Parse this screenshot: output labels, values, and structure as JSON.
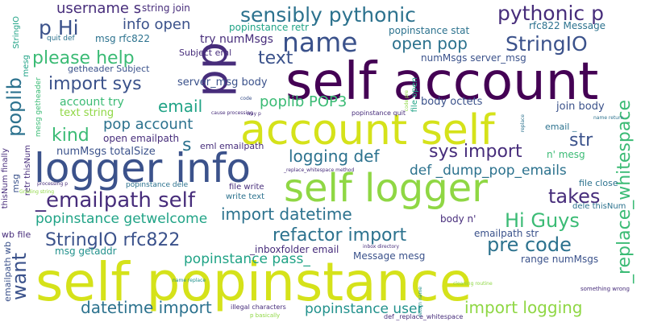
{
  "palette": {
    "background": "#ffffff",
    "yellow": "#d5e21a",
    "light_green": "#8fd744",
    "green": "#3bbb75",
    "teal": "#20a386",
    "cyan": "#21918c",
    "blue": "#2c728e",
    "navy": "#3b528b",
    "indigo": "#472d7b",
    "purple": "#440154"
  },
  "words": [
    {
      "text": "self popinstance",
      "color": "yellow"
    },
    {
      "text": "self account",
      "color": "purple"
    },
    {
      "text": "account self",
      "color": "yellow"
    },
    {
      "text": "logger info",
      "color": "navy"
    },
    {
      "text": "self logger",
      "color": "light_green"
    },
    {
      "text": "pp",
      "color": "indigo"
    },
    {
      "text": "name",
      "color": "navy"
    },
    {
      "text": "sensibly pythonic",
      "color": "blue"
    },
    {
      "text": "pythonic p",
      "color": "indigo"
    },
    {
      "text": "StringIO",
      "color": "navy"
    },
    {
      "text": "username s",
      "color": "indigo"
    },
    {
      "text": "p Hi",
      "color": "navy"
    },
    {
      "text": "info open",
      "color": "navy"
    },
    {
      "text": "string join",
      "color": "indigo"
    },
    {
      "text": "popinstance retr",
      "color": "teal"
    },
    {
      "text": "popinstance stat",
      "color": "blue"
    },
    {
      "text": "rfc822 Message",
      "color": "blue"
    },
    {
      "text": "try numMsgs",
      "color": "indigo"
    },
    {
      "text": "open pop",
      "color": "blue"
    },
    {
      "text": "please help",
      "color": "green"
    },
    {
      "text": "text",
      "color": "navy"
    },
    {
      "text": "import sys",
      "color": "navy"
    },
    {
      "text": "poplib",
      "color": "blue"
    },
    {
      "text": "email",
      "color": "teal"
    },
    {
      "text": "poplib POP3",
      "color": "green"
    },
    {
      "text": "pop account",
      "color": "blue"
    },
    {
      "text": "kind",
      "color": "green"
    },
    {
      "text": "s",
      "color": "blue"
    },
    {
      "text": "str",
      "color": "navy"
    },
    {
      "text": "sys import",
      "color": "indigo"
    },
    {
      "text": "logging def",
      "color": "blue"
    },
    {
      "text": "def _dump_pop_emails",
      "color": "blue"
    },
    {
      "text": "_emailpath self",
      "color": "indigo"
    },
    {
      "text": "takes",
      "color": "indigo"
    },
    {
      "text": "import datetime",
      "color": "blue"
    },
    {
      "text": "Hi Guys",
      "color": "green"
    },
    {
      "text": "popinstance getwelcome",
      "color": "teal"
    },
    {
      "text": "refactor import",
      "color": "blue"
    },
    {
      "text": "StringIO rfc822",
      "color": "navy"
    },
    {
      "text": "pre code",
      "color": "blue"
    },
    {
      "text": "want",
      "color": "navy"
    },
    {
      "text": "popinstance pass_",
      "color": "teal"
    },
    {
      "text": "_replace_whitespace",
      "color": "green"
    },
    {
      "text": "datetime import",
      "color": "blue"
    },
    {
      "text": "popinstance user",
      "color": "cyan"
    },
    {
      "text": "import logging",
      "color": "light_green"
    },
    {
      "text": "numMsgs server_msg",
      "color": "navy"
    },
    {
      "text": "server_msg body",
      "color": "navy"
    },
    {
      "text": "body octets",
      "color": "navy"
    },
    {
      "text": "join body",
      "color": "navy"
    },
    {
      "text": "getheader Subject",
      "color": "navy"
    },
    {
      "text": "account try",
      "color": "green"
    },
    {
      "text": "text string",
      "color": "light_green"
    },
    {
      "text": "numMsgs totalSize",
      "color": "navy"
    },
    {
      "text": "open emailpath",
      "color": "indigo"
    },
    {
      "text": "eml emailpath",
      "color": "indigo"
    },
    {
      "text": "Subject eml",
      "color": "indigo"
    },
    {
      "text": "msg rfc822",
      "color": "blue"
    },
    {
      "text": "quit def",
      "color": "blue"
    },
    {
      "text": "email _",
      "color": "blue"
    },
    {
      "text": "n' mesg",
      "color": "green"
    },
    {
      "text": "file close",
      "color": "blue"
    },
    {
      "text": "dele thisNum",
      "color": "blue"
    },
    {
      "text": "body n'",
      "color": "indigo"
    },
    {
      "text": "emailpath str",
      "color": "navy"
    },
    {
      "text": "range numMsgs",
      "color": "navy"
    },
    {
      "text": "Message mesg",
      "color": "navy"
    },
    {
      "text": "_inboxfolder email",
      "color": "indigo"
    },
    {
      "text": "msg getaddr",
      "color": "cyan"
    },
    {
      "text": "write text",
      "color": "blue"
    },
    {
      "text": "file write",
      "color": "indigo"
    },
    {
      "text": "popinstance dele",
      "color": "blue"
    },
    {
      "text": "retr thisNum",
      "color": "indigo"
    },
    {
      "text": "msg",
      "color": "navy"
    },
    {
      "text": "thisNum finally",
      "color": "indigo"
    },
    {
      "text": "emailpath wb",
      "color": "navy"
    },
    {
      "text": "wb file",
      "color": "indigo"
    },
    {
      "text": "illegal characters",
      "color": "indigo"
    },
    {
      "text": "def _replace_whitespace",
      "color": "indigo"
    },
    {
      "text": "p basically",
      "color": "light_green"
    },
    {
      "text": "something wrong",
      "color": "indigo"
    },
    {
      "text": "cleaning routine",
      "color": "light_green"
    },
    {
      "text": "inbox directory",
      "color": "indigo"
    },
    {
      "text": "name replace",
      "color": "cyan"
    },
    {
      "text": "return name",
      "color": "cyan"
    },
    {
      "text": "name return",
      "color": "blue"
    },
    {
      "text": "_replace_whitespace method",
      "color": "indigo"
    },
    {
      "text": "cause processing",
      "color": "indigo"
    },
    {
      "text": "popinstance quit",
      "color": "indigo"
    },
    {
      "text": "code pre",
      "color": "light_green"
    },
    {
      "text": "way p",
      "color": "indigo"
    },
    {
      "text": "file open",
      "color": "teal"
    },
    {
      "text": "processing p",
      "color": "indigo"
    },
    {
      "text": "mesg getheader",
      "color": "green"
    },
    {
      "text": "mesg",
      "color": "teal"
    },
    {
      "text": "StringIO",
      "color": "teal"
    },
    {
      "text": "code",
      "color": "navy"
    },
    {
      "text": "replace",
      "color": "blue"
    },
    {
      "text": "Grading string",
      "color": "light_green"
    }
  ]
}
